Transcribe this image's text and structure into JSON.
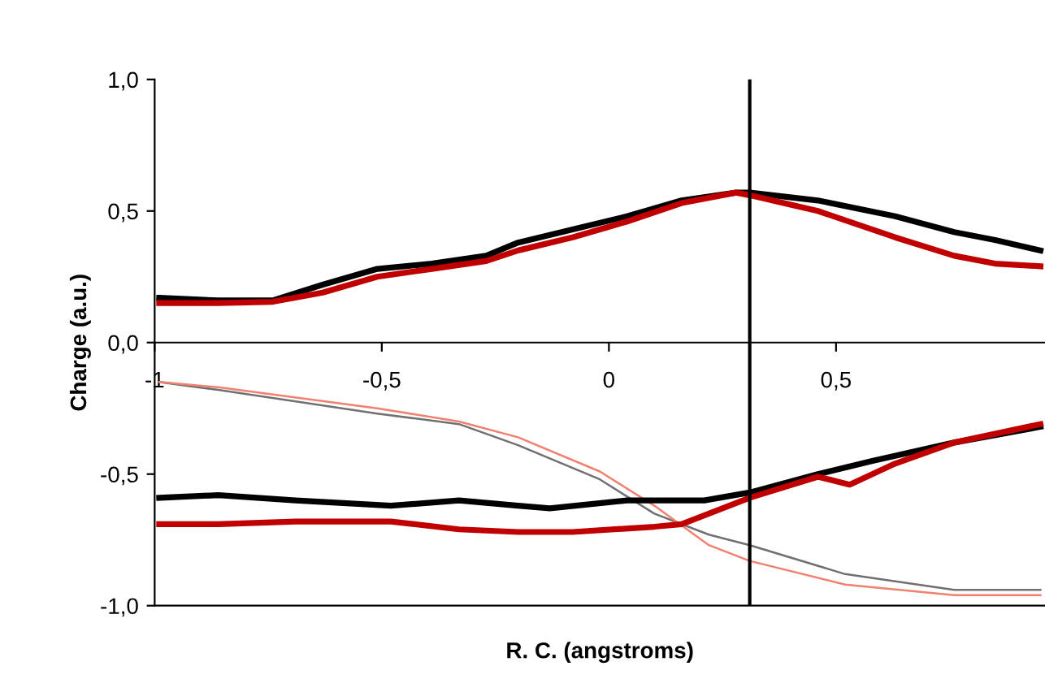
{
  "chart_data": {
    "type": "line",
    "xlabel": "R. C. (angstroms)",
    "ylabel": "Charge (a.u.)",
    "xlim": [
      -1,
      0.96
    ],
    "ylim": [
      -1,
      1
    ],
    "xticks": [
      {
        "value": -1,
        "label": "-1"
      },
      {
        "value": -0.5,
        "label": "-0,5"
      },
      0,
      {
        "value": 0.5,
        "label": "0,5"
      }
    ],
    "yticks": [
      {
        "value": -1,
        "label": "-1,0"
      },
      {
        "value": -0.5,
        "label": "-0,5"
      },
      {
        "value": 0,
        "label": "0,0"
      },
      {
        "value": 0.5,
        "label": "0,5"
      },
      {
        "value": 1,
        "label": "1,0"
      }
    ],
    "grid": false,
    "legend": false,
    "ref_lines": [
      {
        "axis": "x",
        "value": 0.31,
        "color": "#000000"
      }
    ],
    "series": [
      {
        "color": "#000000",
        "x": [
          -0.99,
          -0.86,
          -0.74,
          -0.63,
          -0.51,
          -0.39,
          -0.27,
          -0.2,
          -0.08,
          0.04,
          0.16,
          0.28,
          0.31,
          0.46,
          0.63,
          0.76,
          0.85,
          0.95
        ],
        "values": [
          0.17,
          0.16,
          0.16,
          0.22,
          0.28,
          0.3,
          0.33,
          0.38,
          0.43,
          0.48,
          0.54,
          0.57,
          0.57,
          0.54,
          0.48,
          0.42,
          0.39,
          0.35
        ]
      },
      {
        "color": "#c00000",
        "x": [
          -0.99,
          -0.86,
          -0.74,
          -0.63,
          -0.51,
          -0.39,
          -0.27,
          -0.2,
          -0.08,
          0.04,
          0.16,
          0.28,
          0.31,
          0.46,
          0.63,
          0.76,
          0.85,
          0.95
        ],
        "values": [
          0.15,
          0.15,
          0.155,
          0.19,
          0.25,
          0.28,
          0.31,
          0.35,
          0.4,
          0.46,
          0.53,
          0.57,
          0.56,
          0.5,
          0.4,
          0.33,
          0.3,
          0.29
        ]
      },
      {
        "color": "#707070",
        "x": [
          -0.99,
          -0.86,
          -0.51,
          -0.33,
          -0.2,
          -0.02,
          0.1,
          0.22,
          0.31,
          0.52,
          0.76,
          0.95
        ],
        "values": [
          -0.15,
          -0.18,
          -0.27,
          -0.31,
          -0.39,
          -0.52,
          -0.65,
          -0.73,
          -0.77,
          -0.88,
          -0.94,
          -0.94
        ]
      },
      {
        "color": "#f08070",
        "x": [
          -0.99,
          -0.86,
          -0.51,
          -0.33,
          -0.2,
          -0.02,
          0.1,
          0.22,
          0.31,
          0.52,
          0.76,
          0.95
        ],
        "values": [
          -0.15,
          -0.17,
          -0.25,
          -0.3,
          -0.36,
          -0.49,
          -0.62,
          -0.77,
          -0.83,
          -0.92,
          -0.96,
          -0.96
        ]
      },
      {
        "color": "#000000",
        "x": [
          -0.99,
          -0.86,
          -0.69,
          -0.48,
          -0.33,
          -0.2,
          -0.13,
          0.04,
          0.21,
          0.31,
          0.46,
          0.58,
          0.76,
          0.95
        ],
        "values": [
          -0.59,
          -0.58,
          -0.6,
          -0.62,
          -0.6,
          -0.62,
          -0.63,
          -0.6,
          -0.6,
          -0.57,
          -0.5,
          -0.45,
          -0.38,
          -0.32
        ]
      },
      {
        "color": "#c00000",
        "x": [
          -0.99,
          -0.86,
          -0.69,
          -0.48,
          -0.33,
          -0.2,
          -0.08,
          0.1,
          0.16,
          0.31,
          0.46,
          0.53,
          0.63,
          0.76,
          0.95
        ],
        "values": [
          -0.69,
          -0.69,
          -0.68,
          -0.68,
          -0.71,
          -0.72,
          -0.72,
          -0.7,
          -0.69,
          -0.59,
          -0.51,
          -0.54,
          -0.46,
          -0.38,
          -0.31
        ]
      }
    ]
  }
}
